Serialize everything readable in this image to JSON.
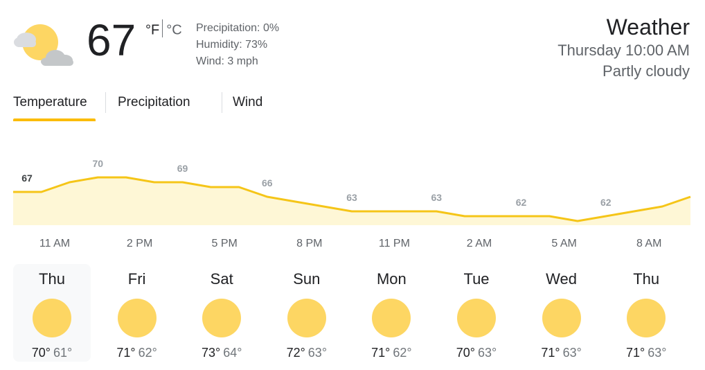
{
  "current": {
    "icon": "partly-cloudy-icon",
    "temperature": "67",
    "unit_f": "°F",
    "unit_c": "°C",
    "precipitation": "Precipitation: 0%",
    "humidity": "Humidity: 73%",
    "wind": "Wind: 3 mph"
  },
  "header": {
    "title": "Weather",
    "datetime": "Thursday 10:00 AM",
    "condition": "Partly cloudy"
  },
  "tabs": [
    {
      "label": "Temperature",
      "active": true
    },
    {
      "label": "Precipitation",
      "active": false
    },
    {
      "label": "Wind",
      "active": false
    }
  ],
  "colors": {
    "accent": "#fbbc04",
    "line": "#f5c518",
    "fill": "#fef7d6",
    "sun": "#fdd663"
  },
  "chart_data": {
    "type": "area",
    "x": [
      "10 AM",
      "11 AM",
      "12 PM",
      "1 PM",
      "2 PM",
      "3 PM",
      "4 PM",
      "5 PM",
      "6 PM",
      "7 PM",
      "8 PM",
      "9 PM",
      "10 PM",
      "11 PM",
      "12 AM",
      "1 AM",
      "2 AM",
      "3 AM",
      "4 AM",
      "5 AM",
      "6 AM",
      "7 AM",
      "8 AM",
      "9 AM",
      "10 AM"
    ],
    "values": [
      67,
      67,
      69,
      70,
      70,
      69,
      69,
      68,
      68,
      66,
      65,
      64,
      63,
      63,
      63,
      63,
      62,
      62,
      62,
      62,
      61,
      62,
      63,
      64,
      66
    ],
    "value_labels": [
      {
        "index": 0,
        "text": "67"
      },
      {
        "index": 3,
        "text": "70"
      },
      {
        "index": 6,
        "text": "69"
      },
      {
        "index": 9,
        "text": "66"
      },
      {
        "index": 12,
        "text": "63"
      },
      {
        "index": 15,
        "text": "63"
      },
      {
        "index": 18,
        "text": "62"
      },
      {
        "index": 21,
        "text": "62"
      }
    ],
    "tick_labels": [
      "11 AM",
      "2 PM",
      "5 PM",
      "8 PM",
      "11 PM",
      "2 AM",
      "5 AM",
      "8 AM"
    ],
    "ylim": [
      55,
      73
    ]
  },
  "forecast": [
    {
      "day": "Thu",
      "high": "70°",
      "low": "61°",
      "icon": "sunny-icon",
      "selected": true
    },
    {
      "day": "Fri",
      "high": "71°",
      "low": "62°",
      "icon": "sunny-icon",
      "selected": false
    },
    {
      "day": "Sat",
      "high": "73°",
      "low": "64°",
      "icon": "sunny-icon",
      "selected": false
    },
    {
      "day": "Sun",
      "high": "72°",
      "low": "63°",
      "icon": "sunny-icon",
      "selected": false
    },
    {
      "day": "Mon",
      "high": "71°",
      "low": "62°",
      "icon": "sunny-icon",
      "selected": false
    },
    {
      "day": "Tue",
      "high": "70°",
      "low": "63°",
      "icon": "sunny-icon",
      "selected": false
    },
    {
      "day": "Wed",
      "high": "71°",
      "low": "63°",
      "icon": "sunny-icon",
      "selected": false
    },
    {
      "day": "Thu",
      "high": "71°",
      "low": "63°",
      "icon": "sunny-icon",
      "selected": false
    }
  ]
}
